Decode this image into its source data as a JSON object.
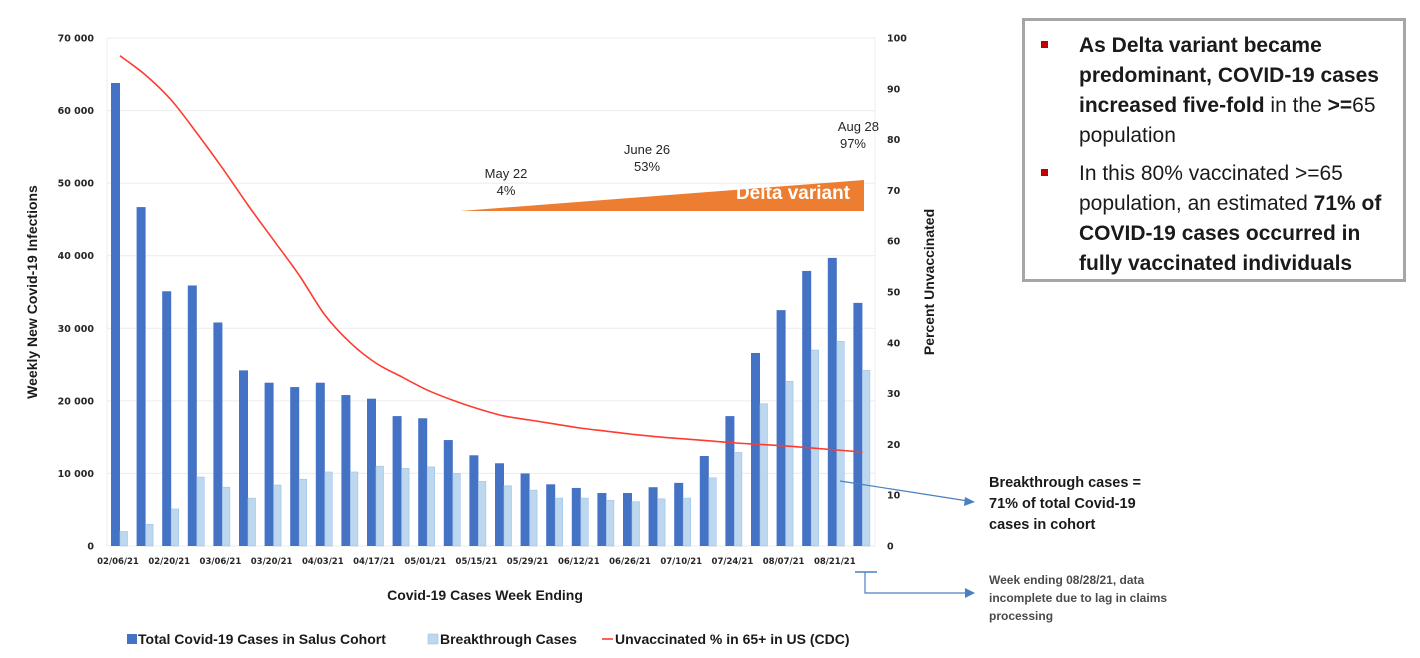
{
  "chart_data": {
    "type": "bar",
    "title": "",
    "xlabel": "Covid-19 Cases Week Ending",
    "ylabel": "Weekly New Covid-19 Infections",
    "y2label": "Percent Unvaccinated",
    "ylim": [
      0,
      70000
    ],
    "y2lim": [
      0,
      100
    ],
    "yticks": [
      "0",
      "10 000",
      "20 000",
      "30 000",
      "40 000",
      "50 000",
      "60 000",
      "70 000"
    ],
    "y2ticks": [
      "0",
      "10",
      "20",
      "30",
      "40",
      "50",
      "60",
      "70",
      "80",
      "90",
      "100"
    ],
    "grid": true,
    "legend_position": "bottom",
    "categories": [
      "02/06/21",
      "02/13/21",
      "02/20/21",
      "02/27/21",
      "03/06/21",
      "03/13/21",
      "03/20/21",
      "03/27/21",
      "04/03/21",
      "04/10/21",
      "04/17/21",
      "04/24/21",
      "05/01/21",
      "05/08/21",
      "05/15/21",
      "05/22/21",
      "05/29/21",
      "06/05/21",
      "06/12/21",
      "06/19/21",
      "06/26/21",
      "07/03/21",
      "07/10/21",
      "07/17/21",
      "07/24/21",
      "07/31/21",
      "08/07/21",
      "08/14/21",
      "08/21/21",
      "08/28/21"
    ],
    "xtick_labels": [
      "02/06/21",
      "02/20/21",
      "03/06/21",
      "03/20/21",
      "04/03/21",
      "04/17/21",
      "05/01/21",
      "05/15/21",
      "05/29/21",
      "06/12/21",
      "06/26/21",
      "07/10/21",
      "07/24/21",
      "08/07/21",
      "08/21/21"
    ],
    "series": [
      {
        "name": "Total Covid-19 Cases in Salus Cohort",
        "type": "bar",
        "axis": "left",
        "color": "#4472c4",
        "values": [
          63800,
          46700,
          35100,
          35900,
          30800,
          24200,
          22500,
          21900,
          22500,
          20800,
          20300,
          17900,
          17600,
          14600,
          12500,
          11400,
          10000,
          8500,
          8000,
          7300,
          7300,
          8100,
          8700,
          12400,
          17900,
          26600,
          32500,
          37900,
          39700,
          33500
        ]
      },
      {
        "name": "Breakthrough Cases",
        "type": "bar",
        "axis": "left",
        "color": "#bdd7ee",
        "values": [
          2000,
          3000,
          5100,
          9500,
          8100,
          6600,
          8400,
          9200,
          10200,
          10200,
          11000,
          10700,
          10900,
          10000,
          8900,
          8300,
          7700,
          6600,
          6600,
          6300,
          6100,
          6500,
          6600,
          9400,
          12900,
          19600,
          22700,
          27000,
          28200,
          24200
        ]
      },
      {
        "name": "Unvaccinated % in 65+ in US (CDC)",
        "type": "line",
        "axis": "right",
        "color": "#ff3b30",
        "values": [
          96.5,
          92.7,
          87.8,
          81.3,
          74.4,
          67.1,
          60.2,
          53.3,
          45.5,
          40.0,
          36.0,
          33.3,
          30.7,
          28.7,
          27.0,
          25.6,
          24.8,
          24.0,
          23.2,
          22.6,
          22.0,
          21.5,
          21.1,
          20.7,
          20.3,
          20.0,
          19.7,
          19.3,
          18.9,
          18.5
        ]
      }
    ],
    "annotations": {
      "delta_variant": {
        "label": "Delta variant",
        "color": "#ed7d31",
        "points": [
          {
            "date": "May 22",
            "share": "4%"
          },
          {
            "date": "June 26",
            "share": "53%"
          },
          {
            "date": "Aug 28",
            "share": "97%"
          }
        ]
      },
      "breakthrough_callout": [
        "Breakthrough cases =",
        "71% of total Covid-19",
        "cases in cohort"
      ],
      "incomplete_callout": [
        "Week ending 08/28/21, data",
        "incomplete due to lag in claims",
        "processing"
      ]
    }
  },
  "summary": {
    "bullets": [
      {
        "parts": [
          {
            "text": "As Delta variant became predominant, COVID-19 cases increased five-fold",
            "bold": true
          },
          {
            "text": " in the ",
            "bold": false
          },
          {
            "text": ">=",
            "bold": true
          },
          {
            "text": "65 population",
            "bold": false
          }
        ]
      },
      {
        "parts": [
          {
            "text": "In this 80% vaccinated >=65 population, an estimated ",
            "bold": false
          },
          {
            "text": "71% of COVID-19 cases occurred in fully vaccinated individuals",
            "bold": true
          }
        ]
      }
    ],
    "bullet_color": "#c00000"
  }
}
